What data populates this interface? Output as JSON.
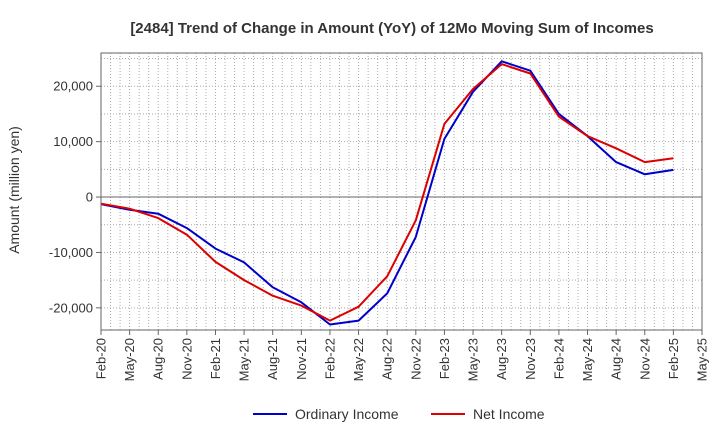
{
  "chart_data": {
    "type": "line",
    "title": "[2484]  Trend of Change in Amount (YoY) of 12Mo Moving Sum of Incomes",
    "xlabel": "",
    "ylabel": "Amount (million yen)",
    "ylim": [
      -24000,
      26000
    ],
    "yticks": [
      -20000,
      -10000,
      0,
      10000,
      20000
    ],
    "ytick_labels": [
      "-20,000",
      "-10,000",
      "0",
      "10,000",
      "20,000"
    ],
    "x": [
      "Feb-20",
      "May-20",
      "Aug-20",
      "Nov-20",
      "Feb-21",
      "May-21",
      "Aug-21",
      "Nov-21",
      "Feb-22",
      "May-22",
      "Aug-22",
      "Nov-22",
      "Feb-23",
      "May-23",
      "Aug-23",
      "Nov-23",
      "Feb-24",
      "May-24",
      "Aug-24",
      "Nov-24",
      "Feb-25",
      "May-25"
    ],
    "grid": true,
    "legend_position": "bottom-center",
    "series": [
      {
        "name": "Ordinary Income",
        "color": "#0000cc",
        "values": [
          -1300,
          -2300,
          -3000,
          -5600,
          -9300,
          -11800,
          -16300,
          -19000,
          -23000,
          -22300,
          -17400,
          -7200,
          10500,
          19000,
          24500,
          22800,
          15000,
          11000,
          6300,
          4100,
          4900,
          null
        ]
      },
      {
        "name": "Net Income",
        "color": "#dd0000",
        "values": [
          -1200,
          -2100,
          -3800,
          -6800,
          -11700,
          -15000,
          -17800,
          -19600,
          -22300,
          -19800,
          -14300,
          -4200,
          13200,
          19500,
          24000,
          22300,
          14500,
          11000,
          8800,
          6300,
          7000,
          null
        ]
      }
    ]
  }
}
